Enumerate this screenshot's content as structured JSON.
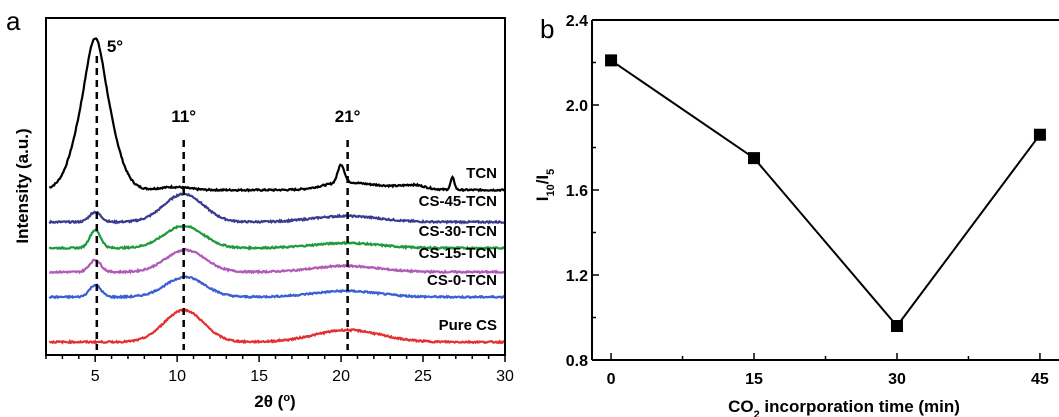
{
  "panels": {
    "a": {
      "label": "a"
    },
    "b": {
      "label": "b"
    }
  },
  "chart_data": [
    {
      "type": "line",
      "panel": "a",
      "xlabel": "2θ (°)",
      "ylabel": "Intensity (a.u.)",
      "xlim": [
        2,
        30
      ],
      "xticks": [
        5,
        10,
        15,
        20,
        25,
        30
      ],
      "y_ticks_shown": false,
      "reference_lines": [
        {
          "x": 5.1,
          "label": "5°"
        },
        {
          "x": 10.4,
          "label": "11°"
        },
        {
          "x": 20.4,
          "label": "21°"
        }
      ],
      "series": [
        {
          "name": "TCN",
          "color": "#000000",
          "offset": 152,
          "peaks": [
            [
              5.0,
              1.0,
              120
            ],
            [
              5.0,
              0.42,
              32
            ],
            [
              9.8,
              0.9,
              3
            ],
            [
              20.0,
              0.2,
              18
            ],
            [
              20.0,
              1.2,
              6
            ],
            [
              22.5,
              1.8,
              4
            ],
            [
              24.5,
              0.6,
              3
            ],
            [
              26.8,
              0.12,
              12
            ]
          ]
        },
        {
          "name": "CS-45-TCN",
          "color": "#3a3a8e",
          "offset": 120,
          "peaks": [
            [
              5.0,
              0.35,
              10
            ],
            [
              10.4,
              1.2,
              28
            ],
            [
              20.3,
              2.0,
              6
            ]
          ]
        },
        {
          "name": "CS-30-TCN",
          "color": "#1e9a3c",
          "offset": 94,
          "peaks": [
            [
              5.0,
              0.33,
              18
            ],
            [
              10.4,
              1.2,
              22
            ],
            [
              20.3,
              2.0,
              5
            ]
          ]
        },
        {
          "name": "CS-15-TCN",
          "color": "#b05ab8",
          "offset": 70,
          "peaks": [
            [
              5.0,
              0.35,
              12
            ],
            [
              10.5,
              1.2,
              22
            ],
            [
              20.3,
              2.0,
              6
            ]
          ]
        },
        {
          "name": "CS-0-TCN",
          "color": "#3a5fd0",
          "offset": 45,
          "peaks": [
            [
              5.0,
              0.35,
              12
            ],
            [
              10.5,
              1.2,
              20
            ],
            [
              20.3,
              2.0,
              6
            ]
          ]
        },
        {
          "name": "Pure CS",
          "color": "#e23030",
          "offset": 0,
          "peaks": [
            [
              10.4,
              1.2,
              32
            ],
            [
              20.4,
              2.0,
              12
            ]
          ]
        }
      ]
    },
    {
      "type": "line",
      "panel": "b",
      "xlabel": "CO2 incorporation time (min)",
      "ylabel": "I10/I5",
      "xlim": [
        -2,
        47
      ],
      "ylim": [
        0.8,
        2.4
      ],
      "xticks": [
        0,
        15,
        30,
        45
      ],
      "yticks": [
        0.8,
        1.2,
        1.6,
        2.0,
        2.4
      ],
      "markers": "square",
      "color": "#000000",
      "x": [
        0,
        15,
        30,
        45
      ],
      "y": [
        2.21,
        1.75,
        0.96,
        1.86
      ]
    }
  ]
}
